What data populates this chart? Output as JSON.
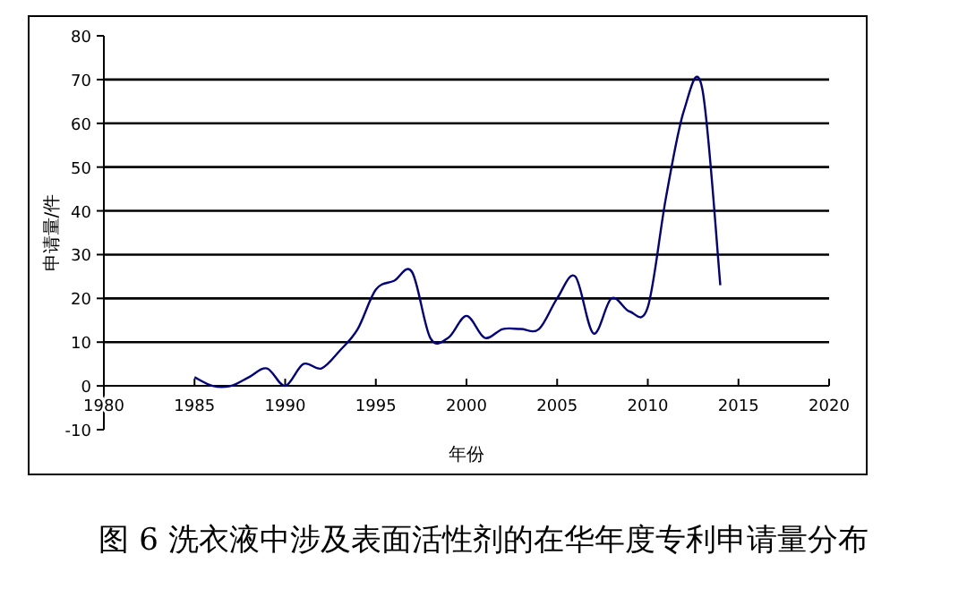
{
  "chart_data": {
    "type": "line",
    "title": "图 6  洗衣液中涉及表面活性剂的在华年度专利申请量分布",
    "xlabel": "年份",
    "ylabel": "申请量/件",
    "x": [
      1985,
      1986,
      1987,
      1988,
      1989,
      1990,
      1991,
      1992,
      1993,
      1994,
      1995,
      1996,
      1997,
      1998,
      1999,
      2000,
      2001,
      2002,
      2003,
      2004,
      2005,
      2006,
      2007,
      2008,
      2009,
      2010,
      2011,
      2012,
      2013,
      2014
    ],
    "series": [
      {
        "color": "#000080",
        "values": [
          2,
          0,
          0,
          2,
          4,
          0,
          5,
          4,
          8,
          13,
          22,
          24,
          26,
          11,
          11,
          16,
          11,
          13,
          13,
          13,
          20,
          25,
          12,
          20,
          17,
          18,
          43,
          63,
          68,
          23
        ]
      }
    ],
    "xlim": [
      1980,
      2020
    ],
    "xticks": [
      1980,
      1985,
      1990,
      1995,
      2000,
      2005,
      2010,
      2015,
      2020
    ],
    "ylim": [
      -10,
      80
    ],
    "yticks": [
      -10,
      0,
      10,
      20,
      30,
      40,
      50,
      60,
      70,
      80
    ],
    "grid": "y",
    "marker": "none",
    "line_style": "solid"
  }
}
